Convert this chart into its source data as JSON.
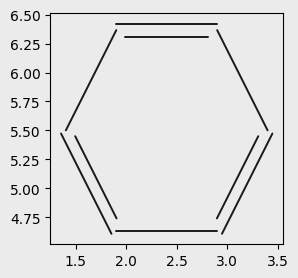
{
  "background_color": "#ebebeb",
  "bond_color": "#1a1a1a",
  "O_color": "#e60000",
  "N_color": "#0000cc",
  "font_size": 8.5,
  "lw": 1.4,
  "bl": 1.0
}
